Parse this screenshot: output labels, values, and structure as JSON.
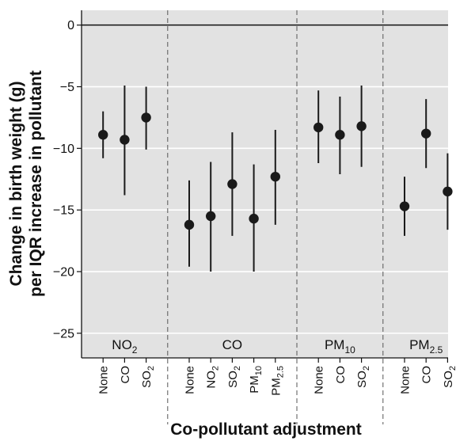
{
  "chart_data": {
    "type": "scatter",
    "subtype": "point-estimate-with-confidence-intervals",
    "ylabel_line1": "Change in birth weight (g)",
    "ylabel_line2": "per IQR increase in pollutant",
    "xlabel": "Co-pollutant adjustment",
    "ylim": [
      -27,
      1.2
    ],
    "yticks": [
      {
        "value": 0,
        "label": "0"
      },
      {
        "value": -5,
        "label": "−5"
      },
      {
        "value": -10,
        "label": "−10"
      },
      {
        "value": -15,
        "label": "−15"
      },
      {
        "value": -20,
        "label": "−20"
      },
      {
        "value": -25,
        "label": "−25"
      }
    ],
    "grid": true,
    "reference_line": 0,
    "colors": {
      "plot_bg": "#e2e2e2",
      "grid": "#ffffff",
      "marker": "#1a1a1a",
      "divider": "#555555"
    },
    "panels": [
      {
        "label": {
          "main": "NO",
          "sub": "2"
        },
        "points": [
          {
            "adjustment": {
              "main": "None",
              "sub": ""
            },
            "estimate": -8.9,
            "lower": -10.8,
            "upper": -7.0
          },
          {
            "adjustment": {
              "main": "CO",
              "sub": ""
            },
            "estimate": -9.3,
            "lower": -13.8,
            "upper": -4.9
          },
          {
            "adjustment": {
              "main": "SO",
              "sub": "2"
            },
            "estimate": -7.5,
            "lower": -10.1,
            "upper": -5.0
          }
        ]
      },
      {
        "label": {
          "main": "CO",
          "sub": ""
        },
        "points": [
          {
            "adjustment": {
              "main": "None",
              "sub": ""
            },
            "estimate": -16.2,
            "lower": -19.6,
            "upper": -12.6
          },
          {
            "adjustment": {
              "main": "NO",
              "sub": "2"
            },
            "estimate": -15.5,
            "lower": -20.0,
            "upper": -11.1
          },
          {
            "adjustment": {
              "main": "SO",
              "sub": "2"
            },
            "estimate": -12.9,
            "lower": -17.1,
            "upper": -8.7
          },
          {
            "adjustment": {
              "main": "PM",
              "sub": "10"
            },
            "estimate": -15.7,
            "lower": -20.0,
            "upper": -11.3
          },
          {
            "adjustment": {
              "main": "PM",
              "sub": "2.5"
            },
            "estimate": -12.3,
            "lower": -16.2,
            "upper": -8.5
          }
        ]
      },
      {
        "label": {
          "main": "PM",
          "sub": "10"
        },
        "points": [
          {
            "adjustment": {
              "main": "None",
              "sub": ""
            },
            "estimate": -8.3,
            "lower": -11.2,
            "upper": -5.3
          },
          {
            "adjustment": {
              "main": "CO",
              "sub": ""
            },
            "estimate": -8.9,
            "lower": -12.1,
            "upper": -5.8
          },
          {
            "adjustment": {
              "main": "SO",
              "sub": "2"
            },
            "estimate": -8.2,
            "lower": -11.5,
            "upper": -4.9
          }
        ]
      },
      {
        "label": {
          "main": "PM",
          "sub": "2.5"
        },
        "points": [
          {
            "adjustment": {
              "main": "None",
              "sub": ""
            },
            "estimate": -14.7,
            "lower": -17.1,
            "upper": -12.3
          },
          {
            "adjustment": {
              "main": "CO",
              "sub": ""
            },
            "estimate": -8.8,
            "lower": -11.6,
            "upper": -6.0
          },
          {
            "adjustment": {
              "main": "SO",
              "sub": "2"
            },
            "estimate": -13.5,
            "lower": -16.6,
            "upper": -10.4
          }
        ]
      }
    ]
  }
}
